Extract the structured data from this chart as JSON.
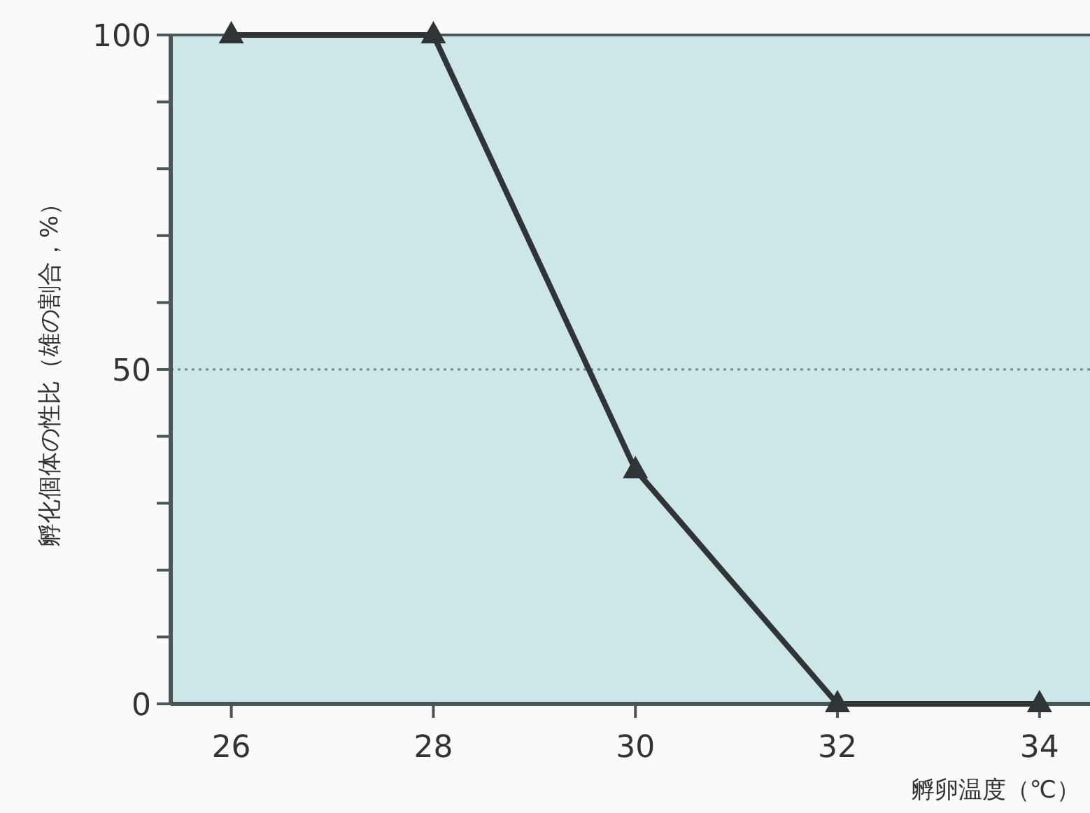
{
  "chart_data": {
    "type": "line",
    "xlabel": "孵卵温度（℃）",
    "ylabel": "孵化個体の性比（雄の割合，%）",
    "x": [
      26,
      28,
      30,
      32,
      34
    ],
    "series": [
      {
        "color": "#2f3436",
        "values": [
          100,
          100,
          35,
          0,
          0
        ]
      }
    ],
    "xlim": [
      25.4,
      34.5
    ],
    "ylim": [
      0,
      100
    ],
    "xticks": [
      26,
      28,
      30,
      32,
      34
    ],
    "yticks": [
      0,
      {
        "value": 10,
        "label": null
      },
      {
        "value": 20,
        "label": null
      },
      {
        "value": 30,
        "label": null
      },
      {
        "value": 40,
        "label": null
      },
      50,
      {
        "value": 60,
        "label": null
      },
      {
        "value": 70,
        "label": null
      },
      {
        "value": 80,
        "label": null
      },
      {
        "value": 90,
        "label": null
      },
      100
    ],
    "marker": "triangle",
    "line_style": "solid",
    "grid": false,
    "ref_lines": [
      {
        "axis": "y",
        "value": 50,
        "line_style": "dotted",
        "color": "#6a8c90"
      }
    ]
  }
}
